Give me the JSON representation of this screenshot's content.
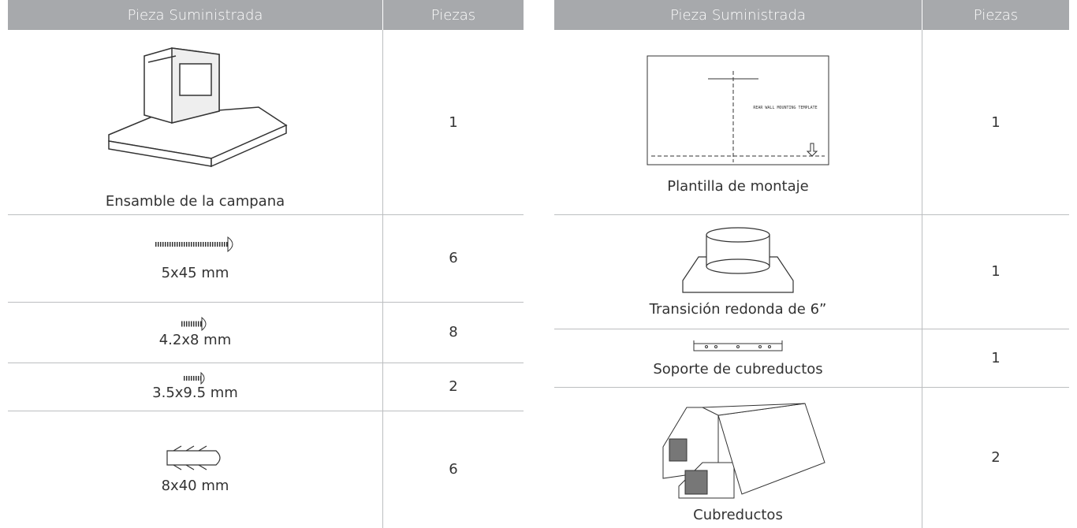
{
  "tables": [
    {
      "header": [
        "Pieza Suministrada",
        "Piezas"
      ],
      "rows": [
        {
          "item": "Ensamble de la campana",
          "qty": 1
        },
        {
          "item": "5x45 mm",
          "qty": 6
        },
        {
          "item": "4.2x8 mm",
          "qty": 8
        },
        {
          "item": "3.5x9.5 mm",
          "qty": 2
        },
        {
          "item": "8x40 mm",
          "qty": 6
        }
      ]
    },
    {
      "header": [
        "Pieza Suministrada",
        "Piezas"
      ],
      "rows": [
        {
          "item": "Plantilla de montaje",
          "qty": 1,
          "image_text": "REAR WALL MOUNTING TEMPLATE"
        },
        {
          "item": "Transición redonda de 6”",
          "qty": 1
        },
        {
          "item": "Soporte de cubreductos",
          "qty": 1
        },
        {
          "item": "Cubreductos",
          "qty": 2
        }
      ]
    }
  ]
}
